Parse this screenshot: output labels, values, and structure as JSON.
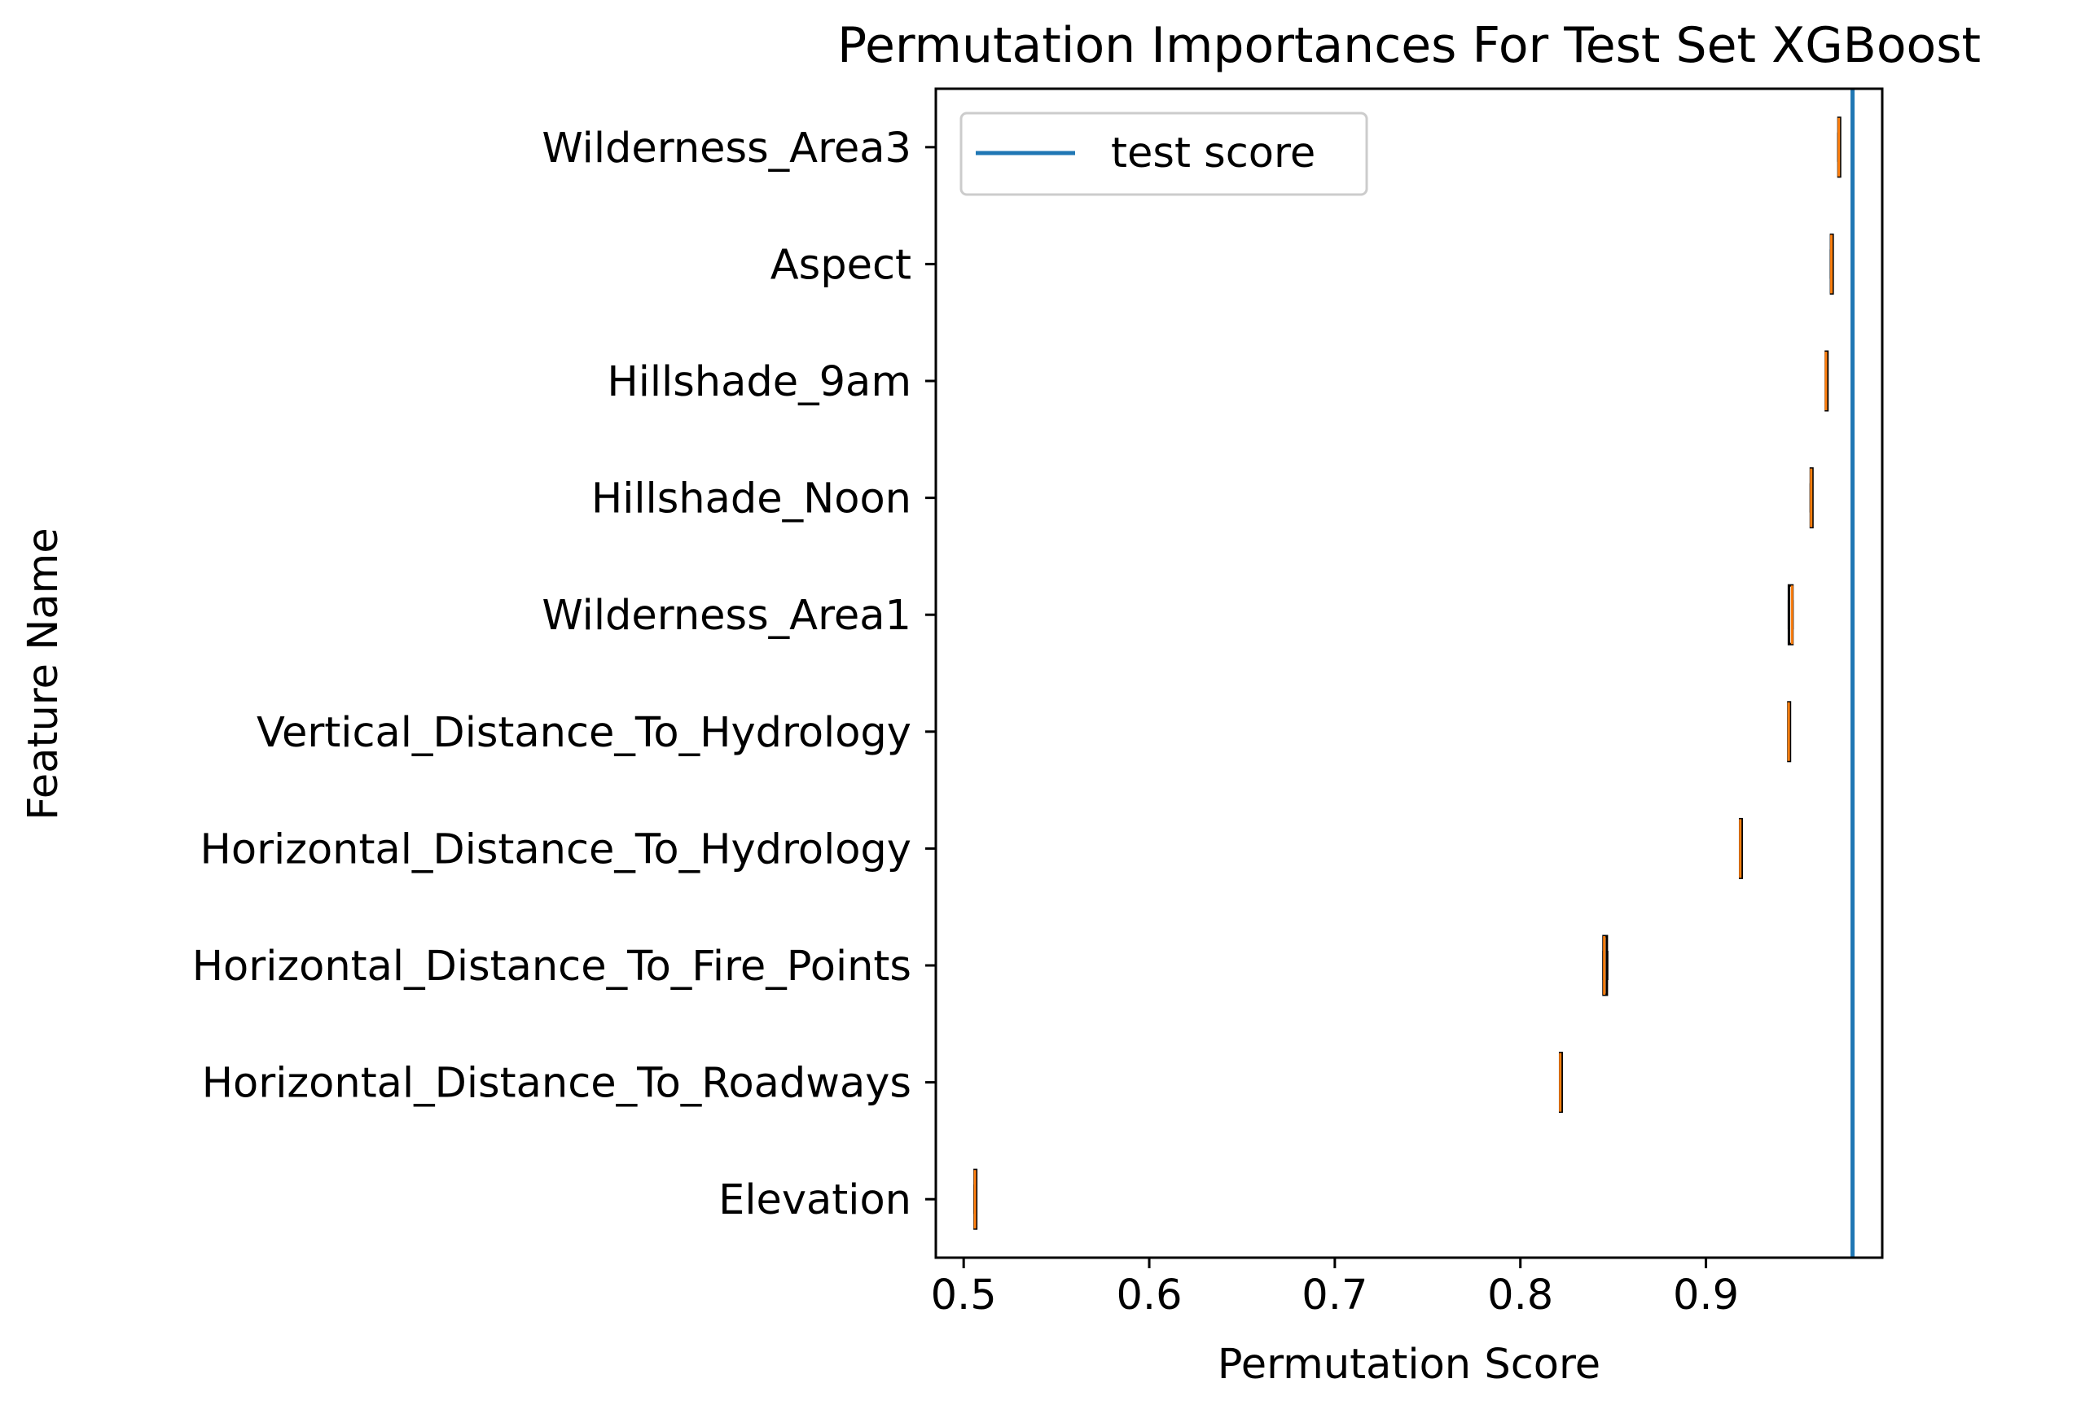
{
  "chart_data": {
    "type": "box",
    "orientation": "horizontal",
    "title": "Permutation Importances For Test Set XGBoost",
    "xlabel": "Permutation Score",
    "ylabel": "Feature Name",
    "xlim": [
      0.485,
      0.995
    ],
    "xticks": [
      0.5,
      0.6,
      0.7,
      0.8,
      0.9
    ],
    "xtick_labels": [
      "0.5",
      "0.6",
      "0.7",
      "0.8",
      "0.9"
    ],
    "grid": false,
    "legend": {
      "placement": "top-left",
      "entries": [
        {
          "label": "test score",
          "color": "#1f77b4"
        }
      ]
    },
    "reference_line": {
      "label": "test score",
      "value": 0.979,
      "color": "#1f77b4"
    },
    "box_color": "#000000",
    "median_color": "#ff7f0e",
    "categories": [
      "Wilderness_Area3",
      "Aspect",
      "Hillshade_9am",
      "Hillshade_Noon",
      "Wilderness_Area1",
      "Vertical_Distance_To_Hydrology",
      "Horizontal_Distance_To_Hydrology",
      "Horizontal_Distance_To_Fire_Points",
      "Horizontal_Distance_To_Roadways",
      "Elevation"
    ],
    "boxes": [
      {
        "feature": "Wilderness_Area3",
        "min": 0.9712,
        "q1": 0.9714,
        "median": 0.9716,
        "q3": 0.9718,
        "max": 0.972
      },
      {
        "feature": "Aspect",
        "min": 0.9672,
        "q1": 0.9674,
        "median": 0.9676,
        "q3": 0.9678,
        "max": 0.968
      },
      {
        "feature": "Hillshade_9am",
        "min": 0.9645,
        "q1": 0.9646,
        "median": 0.9647,
        "q3": 0.9648,
        "max": 0.9649
      },
      {
        "feature": "Hillshade_Noon",
        "min": 0.9563,
        "q1": 0.9565,
        "median": 0.9567,
        "q3": 0.9569,
        "max": 0.9571
      },
      {
        "feature": "Wilderness_Area1",
        "min": 0.9445,
        "q1": 0.9447,
        "median": 0.9464,
        "q3": 0.9466,
        "max": 0.9468
      },
      {
        "feature": "Vertical_Distance_To_Hydrology",
        "min": 0.9443,
        "q1": 0.9444,
        "median": 0.9446,
        "q3": 0.9447,
        "max": 0.9448
      },
      {
        "feature": "Horizontal_Distance_To_Hydrology",
        "min": 0.9182,
        "q1": 0.9184,
        "median": 0.9185,
        "q3": 0.9186,
        "max": 0.9188
      },
      {
        "feature": "Horizontal_Distance_To_Fire_Points",
        "min": 0.8446,
        "q1": 0.8448,
        "median": 0.8452,
        "q3": 0.8466,
        "max": 0.847
      },
      {
        "feature": "Horizontal_Distance_To_Roadways",
        "min": 0.8213,
        "q1": 0.8214,
        "median": 0.8215,
        "q3": 0.8216,
        "max": 0.8217
      },
      {
        "feature": "Elevation",
        "min": 0.5057,
        "q1": 0.5059,
        "median": 0.5061,
        "q3": 0.5062,
        "max": 0.5064
      }
    ]
  }
}
